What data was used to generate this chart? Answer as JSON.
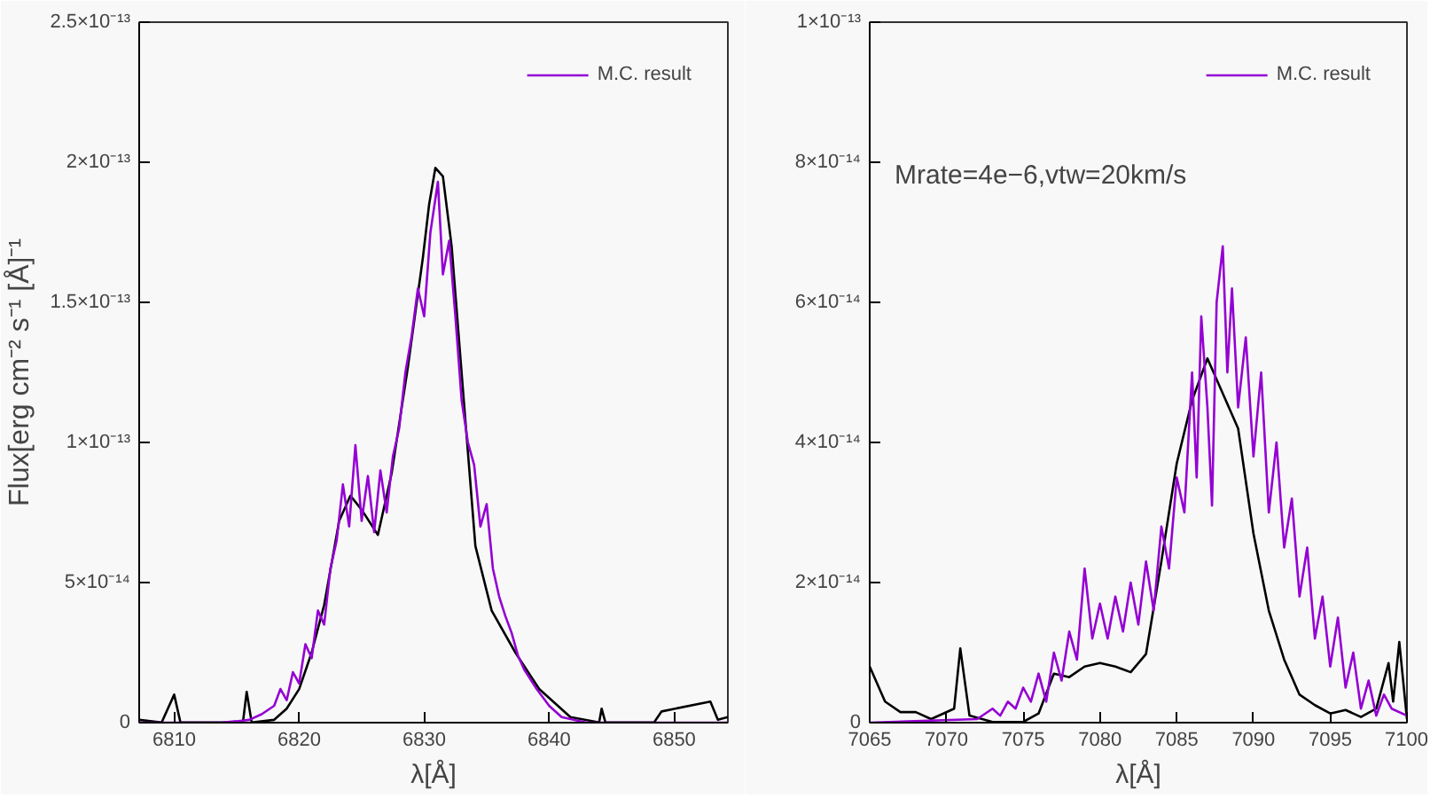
{
  "chart_data": [
    {
      "type": "line",
      "xlabel": "λ[Å]",
      "ylabel": "Flux[erg cm⁻² s⁻¹ [Å]⁻¹",
      "xlim": [
        6807.2,
        6854.3
      ],
      "ylim": [
        0,
        2.5e-13
      ],
      "xticks": [
        6810,
        6820,
        6830,
        6840,
        6850
      ],
      "yticks": [
        0,
        {
          "value": 5e-14,
          "label": "5×10⁻¹⁴"
        },
        {
          "value": 1e-13,
          "label": "1×10⁻¹³"
        },
        {
          "value": 1.5e-13,
          "label": "1.5×10⁻¹³"
        },
        {
          "value": 2e-13,
          "label": "2×10⁻¹³"
        },
        {
          "value": 2.5e-13,
          "label": "2.5×10⁻¹³"
        }
      ],
      "legend": "top right",
      "grid": false,
      "series": [
        {
          "color": "#000000",
          "x": [
            6807.2,
            6809,
            6810,
            6810.5,
            6812,
            6815.5,
            6815.8,
            6816.2,
            6818,
            6819,
            6820,
            6821,
            6822,
            6823.2,
            6824.1,
            6825,
            6826.3,
            6827.4,
            6828.7,
            6829.9,
            6830.4,
            6830.9,
            6831.5,
            6832.2,
            6833.1,
            6834.1,
            6835.4,
            6837.3,
            6839.2,
            6841.7,
            6844,
            6844.2,
            6844.5,
            6848.4,
            6849,
            6852.9,
            6853.5,
            6854.3
          ],
          "values": [
            1e-15,
            1e-16,
            1e-14,
            1e-16,
            1e-16,
            1e-16,
            1.1e-14,
            1e-16,
            1e-15,
            5e-15,
            1.2e-14,
            2.5e-14,
            4.2e-14,
            7.2e-14,
            8.1e-14,
            7.6e-14,
            6.7e-14,
            8.9e-14,
            1.27e-13,
            1.66e-13,
            1.85e-13,
            1.98e-13,
            1.95e-13,
            1.7e-13,
            1.19e-13,
            6.3e-14,
            4e-14,
            2.5e-14,
            1.2e-14,
            2e-15,
            1e-16,
            5e-15,
            1e-16,
            1e-16,
            4e-15,
            7.5e-15,
            1e-15,
            2e-15
          ]
        },
        {
          "name": "M.C. result",
          "color": "#9400d3",
          "x": [
            6807.2,
            6813.7,
            6815,
            6816,
            6817,
            6818,
            6818.5,
            6819,
            6819.5,
            6820,
            6820.5,
            6821,
            6821.5,
            6822,
            6822.5,
            6823,
            6823.5,
            6824,
            6824.5,
            6825,
            6825.5,
            6826,
            6826.5,
            6827,
            6827.5,
            6828,
            6828.5,
            6829,
            6829.5,
            6830,
            6830.5,
            6831.1,
            6831.5,
            6832,
            6832.5,
            6833,
            6833.5,
            6834,
            6834.5,
            6835,
            6835.5,
            6836,
            6836.5,
            6837,
            6837.5,
            6838,
            6839,
            6840,
            6841,
            6843,
            6854.3
          ],
          "values": [
            0,
            0,
            5e-16,
            1e-15,
            3e-15,
            6e-15,
            1.2e-14,
            8e-15,
            1.8e-14,
            1.4e-14,
            2.8e-14,
            2.3e-14,
            4e-14,
            3.5e-14,
            5.5e-14,
            6.5e-14,
            8.5e-14,
            7e-14,
            9.9e-14,
            7.2e-14,
            8.8e-14,
            6.8e-14,
            9e-14,
            7.5e-14,
            9.5e-14,
            1.05e-13,
            1.25e-13,
            1.38e-13,
            1.55e-13,
            1.45e-13,
            1.75e-13,
            1.93e-13,
            1.6e-13,
            1.72e-13,
            1.45e-13,
            1.15e-13,
            1e-13,
            9.2e-14,
            7e-14,
            7.8e-14,
            5.5e-14,
            4.5e-14,
            3.8e-14,
            3.2e-14,
            2.4e-14,
            1.9e-14,
            1.2e-14,
            6e-15,
            2e-15,
            0,
            0
          ]
        }
      ]
    },
    {
      "type": "line",
      "xlabel": "λ[Å]",
      "xlim": [
        7065,
        7100
      ],
      "ylim": [
        0,
        1e-13
      ],
      "xticks": [
        7065,
        7070,
        7075,
        7080,
        7085,
        7090,
        7095,
        7100
      ],
      "yticks": [
        0,
        {
          "value": 2e-14,
          "label": "2×10⁻¹⁴"
        },
        {
          "value": 4e-14,
          "label": "4×10⁻¹⁴"
        },
        {
          "value": 6e-14,
          "label": "6×10⁻¹⁴"
        },
        {
          "value": 8e-14,
          "label": "8×10⁻¹⁴"
        },
        {
          "value": 1e-13,
          "label": "1×10⁻¹³"
        }
      ],
      "legend": "top right",
      "grid": false,
      "annotations": [
        "Mrate=4e−6,vtw=20km/s"
      ],
      "series": [
        {
          "color": "#000000",
          "x": [
            7065,
            7066,
            7067,
            7068,
            7069,
            7070.5,
            7070.9,
            7071.5,
            7073,
            7075,
            7076,
            7077,
            7078,
            7079,
            7080,
            7081,
            7082,
            7083,
            7084,
            7085,
            7086,
            7087,
            7088,
            7089,
            7090,
            7091,
            7092,
            7093,
            7094,
            7095,
            7096,
            7097,
            7098,
            7098.8,
            7099.1,
            7099.5,
            7100
          ],
          "values": [
            8e-15,
            3e-15,
            1.5e-15,
            1.5e-15,
            5e-16,
            2e-15,
            1.06e-14,
            1e-15,
            1e-16,
            1e-16,
            1.3e-15,
            7e-15,
            6.5e-15,
            8e-15,
            8.5e-15,
            8e-15,
            7.2e-15,
            9.8e-15,
            2.3e-14,
            3.7e-14,
            4.6e-14,
            5.2e-14,
            4.7e-14,
            4.2e-14,
            2.7e-14,
            1.6e-14,
            9e-15,
            4e-15,
            2.5e-15,
            1.3e-15,
            1.8e-15,
            8e-16,
            2e-15,
            8.5e-15,
            3e-15,
            1.15e-14,
            5e-16
          ]
        },
        {
          "name": "M.C. result",
          "color": "#9400d3",
          "x": [
            7065,
            7072,
            7073,
            7073.5,
            7074,
            7074.5,
            7075,
            7075.5,
            7076,
            7076.5,
            7077,
            7077.5,
            7078,
            7078.5,
            7079,
            7079.5,
            7080,
            7080.5,
            7081,
            7081.5,
            7082,
            7082.5,
            7083,
            7083.5,
            7084,
            7084.5,
            7085,
            7085.5,
            7086,
            7086.3,
            7086.6,
            7087,
            7087.3,
            7087.6,
            7088,
            7088.3,
            7088.6,
            7089,
            7089.5,
            7090,
            7090.5,
            7091,
            7091.5,
            7092,
            7092.5,
            7093,
            7093.5,
            7094,
            7094.5,
            7095,
            7095.5,
            7096,
            7096.5,
            7097,
            7097.5,
            7098,
            7098.5,
            7099,
            7100
          ],
          "values": [
            0,
            5e-16,
            2e-15,
            1e-15,
            3e-15,
            2e-15,
            5e-15,
            3e-15,
            7e-15,
            3e-15,
            1e-14,
            6e-15,
            1.3e-14,
            9e-15,
            2.2e-14,
            1.2e-14,
            1.7e-14,
            1.2e-14,
            1.8e-14,
            1.3e-14,
            2e-14,
            1.4e-14,
            2.3e-14,
            1.6e-14,
            2.8e-14,
            2.2e-14,
            3.5e-14,
            3e-14,
            5e-14,
            3.5e-14,
            5.8e-14,
            4.5e-14,
            3.1e-14,
            6e-14,
            6.8e-14,
            5e-14,
            6.2e-14,
            4.5e-14,
            5.5e-14,
            3.8e-14,
            5e-14,
            3e-14,
            4e-14,
            2.5e-14,
            3.2e-14,
            1.8e-14,
            2.5e-14,
            1.2e-14,
            1.8e-14,
            8e-15,
            1.5e-14,
            5e-15,
            1e-14,
            2e-15,
            6e-15,
            1e-15,
            4e-15,
            2e-15,
            1e-15
          ]
        }
      ]
    }
  ]
}
